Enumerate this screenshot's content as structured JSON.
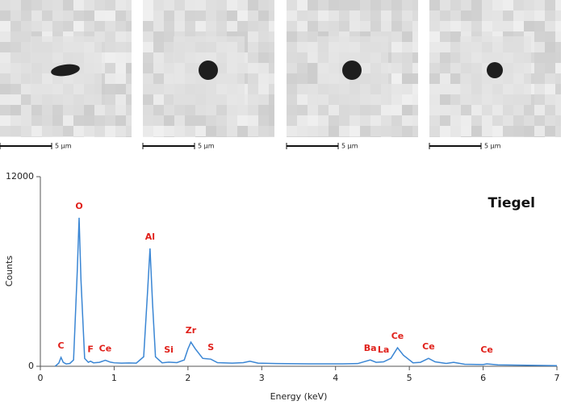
{
  "micrographs": [
    {
      "scale_label": "5 µm"
    },
    {
      "scale_label": "5 µm"
    },
    {
      "scale_label": "5 µm"
    },
    {
      "scale_label": "5 µm"
    }
  ],
  "chart_data": {
    "type": "line",
    "annotation": "Tiegel",
    "xlabel": "Energy (keV)",
    "ylabel": "Counts",
    "x": [
      0.2,
      0.25,
      0.28,
      0.31,
      0.35,
      0.4,
      0.45,
      0.5,
      0.525,
      0.55,
      0.6,
      0.65,
      0.68,
      0.72,
      0.8,
      0.88,
      0.95,
      1.0,
      1.1,
      1.2,
      1.3,
      1.4,
      1.45,
      1.486,
      1.52,
      1.56,
      1.65,
      1.74,
      1.85,
      1.95,
      2.0,
      2.04,
      2.1,
      2.2,
      2.31,
      2.4,
      2.6,
      2.75,
      2.84,
      2.95,
      3.2,
      3.5,
      3.8,
      4.1,
      4.3,
      4.47,
      4.55,
      4.65,
      4.75,
      4.84,
      4.92,
      5.05,
      5.15,
      5.26,
      5.35,
      5.5,
      5.6,
      5.75,
      6.0,
      6.05,
      6.2,
      6.5,
      6.8,
      7.0
    ],
    "series": [
      {
        "name": "Tiegel",
        "color": "#3a86d4",
        "values": [
          0,
          200,
          560,
          250,
          150,
          180,
          400,
          6000,
          9400,
          5500,
          500,
          250,
          320,
          220,
          250,
          380,
          260,
          220,
          200,
          210,
          200,
          600,
          4500,
          7460,
          4000,
          600,
          220,
          260,
          230,
          400,
          1100,
          1530,
          1100,
          500,
          450,
          230,
          200,
          230,
          320,
          200,
          170,
          160,
          150,
          150,
          170,
          400,
          250,
          280,
          500,
          1170,
          700,
          220,
          250,
          500,
          280,
          180,
          250,
          130,
          110,
          150,
          90,
          70,
          50,
          40
        ]
      }
    ],
    "peak_labels": [
      {
        "text": "C",
        "x": 0.28
      },
      {
        "text": "O",
        "x": 0.525
      },
      {
        "text": "F",
        "x": 0.68
      },
      {
        "text": "Ce",
        "x": 0.88
      },
      {
        "text": "Al",
        "x": 1.486
      },
      {
        "text": "Si",
        "x": 1.74
      },
      {
        "text": "Zr",
        "x": 2.04
      },
      {
        "text": "S",
        "x": 2.31
      },
      {
        "text": "Ba",
        "x": 4.47
      },
      {
        "text": "La",
        "x": 4.65
      },
      {
        "text": "Ce",
        "x": 4.84
      },
      {
        "text": "Ce",
        "x": 5.26
      },
      {
        "text": "Ce",
        "x": 6.05
      }
    ],
    "xlim": [
      0,
      7
    ],
    "xticks": [
      0,
      1,
      2,
      3,
      4,
      5,
      6,
      7
    ],
    "ylim": [
      0,
      12000
    ],
    "yticks": [
      0,
      12000
    ]
  }
}
